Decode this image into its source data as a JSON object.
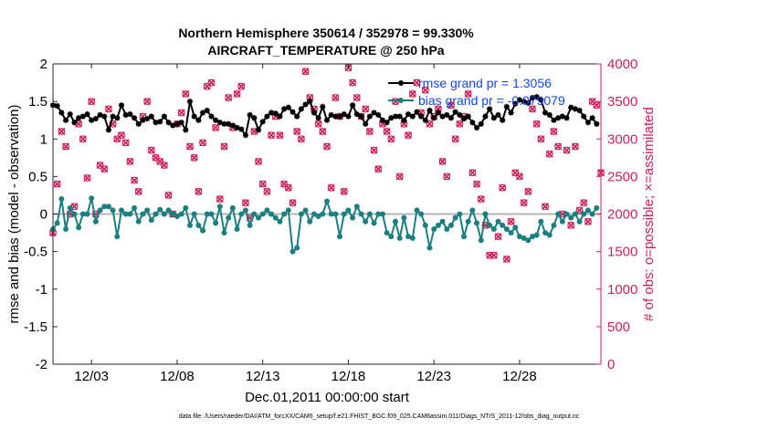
{
  "title_line1": "Northern Hemisphere 350614 / 352978 = 99.330%",
  "title_line2": "AIRCRAFT_TEMPERATURE @ 250 hPa",
  "footer": "data file: /Users/raeder/DAI/ATM_forcXX/CAM6_setup/f.e21.FHIST_BGC.f09_025.CAM6assim.011/Diags_NTrS_2011-12/obs_diag_output.nc",
  "colors": {
    "rmse": "#000000",
    "bias": "#1c7f7f",
    "obs": "#cc1f57",
    "zero_line": "#b4b4b4"
  },
  "chart_data": {
    "type": "line",
    "xlabel": "Dec.01,2011 00:00:00 start",
    "ylabel_left": "rmse and bias (model - observation)",
    "ylabel_right": "# of obs: o=possible; ×=assimilated",
    "x_ticks": [
      "12/03",
      "12/08",
      "12/13",
      "12/18",
      "12/23",
      "12/28"
    ],
    "x_tick_days": [
      3,
      8,
      13,
      18,
      23,
      28
    ],
    "xlim_days": [
      0.75,
      32.75
    ],
    "ylim_left": [
      -2,
      2
    ],
    "yticks_left": [
      "-2",
      "-1.5",
      "-1",
      "-0.5",
      "0",
      "0.5",
      "1",
      "1.5",
      "2"
    ],
    "ylim_right": [
      0,
      4000
    ],
    "yticks_right": [
      "0",
      "500",
      "1000",
      "1500",
      "2000",
      "2500",
      "3000",
      "3500",
      "4000"
    ],
    "legend": {
      "location": "top-right",
      "rmse_label": "rmse grand pr = 1.3056",
      "bias_label": "bias grand pr = -0.079079"
    },
    "x_days": [
      0.75,
      1.0,
      1.25,
      1.5,
      1.75,
      2.0,
      2.25,
      2.5,
      2.75,
      3.0,
      3.25,
      3.5,
      3.75,
      4.0,
      4.25,
      4.5,
      4.75,
      5.0,
      5.25,
      5.5,
      5.75,
      6.0,
      6.25,
      6.5,
      6.75,
      7.0,
      7.25,
      7.5,
      7.75,
      8.0,
      8.25,
      8.5,
      8.75,
      9.0,
      9.25,
      9.5,
      9.75,
      10.0,
      10.25,
      10.5,
      10.75,
      11.0,
      11.25,
      11.5,
      11.75,
      12.0,
      12.25,
      12.5,
      12.75,
      13.0,
      13.25,
      13.5,
      13.75,
      14.0,
      14.25,
      14.5,
      14.75,
      15.0,
      15.25,
      15.5,
      15.75,
      16.0,
      16.25,
      16.5,
      16.75,
      17.0,
      17.25,
      17.5,
      17.75,
      18.0,
      18.25,
      18.5,
      18.75,
      19.0,
      19.25,
      19.5,
      19.75,
      20.0,
      20.25,
      20.5,
      20.75,
      21.0,
      21.25,
      21.5,
      21.75,
      22.0,
      22.25,
      22.5,
      22.75,
      23.0,
      23.25,
      23.5,
      23.75,
      24.0,
      24.25,
      24.5,
      24.75,
      25.0,
      25.25,
      25.5,
      25.75,
      26.0,
      26.25,
      26.5,
      26.75,
      27.0,
      27.25,
      27.5,
      27.75,
      28.0,
      28.25,
      28.5,
      28.75,
      29.0,
      29.25,
      29.5,
      29.75,
      30.0,
      30.25,
      30.5,
      30.75,
      31.0,
      31.25,
      31.5,
      31.75,
      32.0,
      32.25,
      32.5
    ],
    "rmse": [
      1.45,
      1.44,
      1.35,
      1.25,
      1.33,
      1.22,
      1.28,
      1.3,
      1.33,
      1.25,
      1.27,
      1.32,
      1.3,
      1.12,
      1.3,
      1.28,
      1.45,
      1.32,
      1.33,
      1.28,
      1.2,
      1.25,
      1.27,
      1.3,
      1.22,
      1.23,
      1.3,
      1.22,
      1.18,
      1.2,
      1.22,
      1.12,
      1.5,
      1.3,
      1.25,
      1.35,
      1.38,
      1.3,
      1.25,
      1.22,
      1.2,
      1.2,
      1.18,
      1.15,
      1.13,
      1.05,
      1.32,
      1.28,
      1.12,
      1.23,
      1.3,
      1.35,
      1.34,
      1.3,
      1.4,
      1.42,
      1.36,
      1.3,
      1.4,
      1.46,
      1.5,
      1.35,
      1.28,
      1.43,
      1.25,
      1.32,
      1.3,
      1.3,
      1.33,
      1.3,
      1.45,
      1.33,
      1.3,
      1.2,
      1.3,
      1.35,
      1.32,
      1.25,
      1.22,
      1.28,
      1.3,
      1.3,
      1.25,
      1.33,
      1.3,
      1.36,
      1.3,
      1.25,
      1.38,
      1.28,
      1.35,
      1.3,
      1.32,
      1.28,
      1.36,
      1.32,
      1.27,
      1.3,
      1.22,
      1.15,
      1.2,
      1.3,
      1.4,
      1.28,
      1.32,
      1.25,
      1.43,
      1.35,
      1.47,
      1.52,
      1.5,
      1.48,
      1.55,
      1.56,
      1.52,
      1.35,
      1.32,
      1.25,
      1.28,
      1.3,
      1.28,
      1.42,
      1.4,
      1.38,
      1.3,
      1.22,
      1.28,
      1.2
    ],
    "bias": [
      -0.2,
      -0.12,
      0.2,
      -0.2,
      0.08,
      0.0,
      -0.18,
      0.0,
      0.0,
      0.21,
      -0.1,
      0.05,
      0.1,
      0.1,
      0.05,
      -0.3,
      0.05,
      0.0,
      0.0,
      0.08,
      -0.1,
      0.0,
      0.05,
      -0.08,
      0.0,
      0.06,
      0.0,
      0.05,
      0.0,
      -0.03,
      0.0,
      0.08,
      -0.15,
      0.0,
      -0.15,
      -0.22,
      0.0,
      0.0,
      -0.12,
      0.1,
      -0.25,
      -0.05,
      0.08,
      -0.2,
      0.0,
      0.05,
      -0.15,
      0.0,
      -0.05,
      0.0,
      0.05,
      0.0,
      -0.05,
      -0.1,
      0.0,
      0.05,
      -0.5,
      -0.45,
      0.0,
      0.05,
      -0.1,
      0.0,
      -0.03,
      0.0,
      0.17,
      0.0,
      0.0,
      -0.3,
      0.0,
      0.05,
      -0.05,
      0.1,
      0.0,
      -0.1,
      0.0,
      -0.12,
      0.0,
      0.0,
      -0.25,
      -0.3,
      -0.1,
      -0.32,
      -0.05,
      -0.3,
      -0.32,
      0.05,
      0.0,
      -0.15,
      -0.45,
      -0.2,
      -0.15,
      -0.1,
      -0.2,
      -0.15,
      -0.05,
      0.0,
      -0.3,
      -0.1,
      0.05,
      -0.12,
      -0.35,
      0.0,
      -0.15,
      -0.2,
      -0.1,
      -0.15,
      -0.2,
      -0.25,
      -0.18,
      -0.3,
      -0.32,
      -0.35,
      -0.3,
      -0.28,
      -0.1,
      -0.25,
      -0.28,
      -0.15,
      0.0,
      -0.1,
      0.0,
      -0.05,
      0.0,
      -0.1,
      0.0,
      0.05,
      0.0,
      0.08,
      -0.1,
      -0.12
    ],
    "obs_days": [
      0.75,
      1.0,
      1.25,
      1.5,
      1.75,
      2.0,
      2.25,
      2.5,
      2.75,
      3.0,
      3.25,
      3.5,
      3.75,
      4.0,
      4.25,
      4.5,
      4.75,
      5.0,
      5.25,
      5.5,
      5.75,
      6.0,
      6.25,
      6.5,
      6.75,
      7.0,
      7.25,
      7.5,
      7.75,
      8.0,
      8.25,
      8.5,
      8.75,
      9.0,
      9.25,
      9.5,
      9.75,
      10.0,
      10.25,
      10.5,
      10.75,
      11.0,
      11.25,
      11.5,
      11.75,
      12.0,
      12.25,
      12.5,
      12.75,
      13.0,
      13.25,
      13.5,
      13.75,
      14.0,
      14.25,
      14.5,
      14.75,
      15.0,
      15.25,
      15.5,
      15.75,
      16.0,
      16.25,
      16.5,
      16.75,
      17.0,
      17.25,
      17.5,
      17.75,
      18.0,
      18.25,
      18.5,
      18.75,
      19.0,
      19.25,
      19.5,
      19.75,
      20.0,
      20.25,
      20.5,
      20.75,
      21.0,
      21.25,
      21.5,
      21.75,
      22.0,
      22.25,
      22.5,
      22.75,
      23.0,
      23.25,
      23.5,
      23.75,
      24.0,
      24.25,
      24.5,
      24.75,
      25.0,
      25.25,
      25.5,
      25.75,
      26.0,
      26.25,
      26.5,
      26.75,
      27.0,
      27.25,
      27.5,
      27.75,
      28.0,
      28.25,
      28.5,
      28.75,
      29.0,
      29.25,
      29.5,
      29.75,
      30.0,
      30.25,
      30.5,
      30.75,
      31.0,
      31.25,
      31.5,
      31.75,
      32.0,
      32.25,
      32.5,
      32.75
    ],
    "obs_counts": [
      1750,
      2400,
      3100,
      2900,
      2000,
      2100,
      3200,
      3000,
      2480,
      3500,
      2000,
      2650,
      2600,
      3400,
      3200,
      3000,
      3050,
      2950,
      2700,
      2450,
      2300,
      3300,
      3500,
      2850,
      2750,
      2700,
      2650,
      2250,
      2000,
      3200,
      3350,
      3600,
      2900,
      2750,
      2300,
      2950,
      3700,
      3750,
      3150,
      2200,
      2900,
      3550,
      3150,
      3600,
      3700,
      2150,
      1950,
      3100,
      2700,
      2400,
      2300,
      3050,
      3300,
      3050,
      2400,
      2350,
      2150,
      3100,
      3000,
      3900,
      3550,
      3400,
      3200,
      3100,
      2900,
      2350,
      3550,
      3300,
      2300,
      3950,
      3750,
      3550,
      3300,
      3400,
      3100,
      2850,
      2600,
      3200,
      3100,
      3000,
      3500,
      2500,
      3200,
      3050,
      3600,
      3750,
      3350,
      3650,
      3200,
      3300,
      3400,
      2700,
      2500,
      3450,
      3000,
      3200,
      3300,
      3600,
      2550,
      2400,
      2200,
      1850,
      1450,
      1450,
      1700,
      2350,
      1400,
      1900,
      2550,
      2500,
      2150,
      2300,
      3400,
      3200,
      3000,
      2100,
      2800,
      3100,
      2900,
      2000,
      2850,
      1850,
      2900,
      2050,
      2150,
      1900,
      3500,
      3450,
      2550,
      2700,
      0
    ],
    "assim_counts": [
      1750,
      2400,
      3100,
      2900,
      2000,
      2100,
      3200,
      3000,
      2480,
      3500,
      2000,
      2650,
      2600,
      3400,
      3200,
      3000,
      3050,
      2950,
      2700,
      2450,
      2300,
      3300,
      3500,
      2850,
      2750,
      2700,
      2650,
      2250,
      2000,
      3200,
      3350,
      3600,
      2900,
      2750,
      2300,
      2950,
      3700,
      3750,
      3150,
      2200,
      2900,
      3550,
      3150,
      3600,
      3700,
      2150,
      1950,
      3100,
      2700,
      2400,
      2300,
      3050,
      3300,
      3050,
      2400,
      2350,
      2150,
      3100,
      3000,
      3900,
      3550,
      3400,
      3200,
      3100,
      2900,
      2350,
      3550,
      3300,
      2300,
      3950,
      3750,
      3550,
      3300,
      3400,
      3100,
      2850,
      2600,
      3200,
      3100,
      3000,
      3500,
      2500,
      3200,
      3050,
      3600,
      3750,
      3350,
      3650,
      3200,
      3300,
      3400,
      2700,
      2500,
      3450,
      3000,
      3200,
      3300,
      3600,
      2550,
      2400,
      2200,
      1850,
      1450,
      1450,
      1700,
      2350,
      1400,
      1900,
      2550,
      2500,
      2150,
      2300,
      3400,
      3200,
      3000,
      2100,
      2800,
      3100,
      2900,
      2000,
      2850,
      1850,
      2900,
      2050,
      2150,
      1900,
      3500,
      3450,
      2550,
      2700,
      0
    ]
  }
}
